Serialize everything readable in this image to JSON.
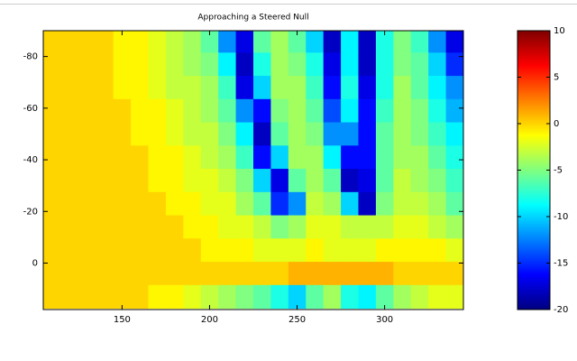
{
  "chart_data": {
    "type": "heatmap",
    "title": "Approaching a Steered Null",
    "x": [
      110,
      120,
      130,
      140,
      150,
      160,
      170,
      180,
      190,
      200,
      210,
      220,
      230,
      240,
      250,
      260,
      270,
      280,
      290,
      300,
      310,
      320,
      330,
      340
    ],
    "y": [
      -86,
      -77,
      -68,
      -59,
      -50,
      -41,
      -32,
      -23,
      -14,
      -5,
      4,
      13
    ],
    "z": [
      [
        0,
        0,
        0,
        0,
        -1,
        -1,
        -2,
        -3,
        -4,
        -6,
        -12,
        -17,
        -6,
        -4,
        -6,
        -10,
        -18,
        -9,
        -18,
        -8,
        -5,
        -7,
        -12,
        -17
      ],
      [
        0,
        0,
        0,
        0,
        -1,
        -1,
        -2,
        -3,
        -4,
        -5,
        -9,
        -18,
        -8,
        -4,
        -5,
        -8,
        -17,
        -9,
        -18,
        -8,
        -5,
        -6,
        -10,
        -15
      ],
      [
        0,
        0,
        0,
        0,
        -1,
        -1,
        -2,
        -3,
        -3,
        -4,
        -7,
        -17,
        -10,
        -4,
        -4,
        -7,
        -16,
        -8,
        -17,
        -8,
        -4,
        -6,
        -9,
        -12
      ],
      [
        0,
        0,
        0,
        0,
        0,
        -1,
        -1,
        -2,
        -3,
        -4,
        -6,
        -12,
        -16,
        -5,
        -4,
        -6,
        -14,
        -9,
        -16,
        -7,
        -4,
        -5,
        -8,
        -11
      ],
      [
        0,
        0,
        0,
        0,
        0,
        -1,
        -1,
        -2,
        -3,
        -3,
        -5,
        -9,
        -18,
        -6,
        -4,
        -5,
        -12,
        -12,
        -16,
        -6,
        -4,
        -5,
        -7,
        -9
      ],
      [
        0,
        0,
        0,
        0,
        0,
        0,
        -1,
        -1,
        -2,
        -3,
        -4,
        -7,
        -16,
        -10,
        -4,
        -4,
        -9,
        -16,
        -16,
        -6,
        -4,
        -4,
        -6,
        -8
      ],
      [
        0,
        0,
        0,
        0,
        0,
        0,
        -1,
        -1,
        -2,
        -2,
        -3,
        -5,
        -10,
        -17,
        -6,
        -4,
        -6,
        -18,
        -17,
        -6,
        -3,
        -4,
        -5,
        -7
      ],
      [
        0,
        0,
        0,
        0,
        0,
        0,
        0,
        -1,
        -1,
        -2,
        -2,
        -4,
        -6,
        -15,
        -12,
        -3,
        -4,
        -10,
        -18,
        -5,
        -3,
        -3,
        -4,
        -6
      ],
      [
        0,
        0,
        0,
        0,
        0,
        0,
        0,
        0,
        -1,
        -1,
        -2,
        -2,
        -3,
        -5,
        -4,
        -2,
        -2,
        -3,
        -3,
        -3,
        -2,
        -2,
        -3,
        -4
      ],
      [
        0,
        0,
        0,
        0,
        0,
        0,
        0,
        0,
        0,
        -1,
        -1,
        -1,
        -2,
        -2,
        -2,
        -1,
        -2,
        -2,
        -2,
        -1,
        -1,
        -1,
        -1,
        -2
      ],
      [
        0,
        0,
        0,
        0,
        0,
        0,
        0,
        0,
        0,
        0,
        0,
        0,
        0,
        0,
        1,
        1,
        1,
        1,
        1,
        1,
        0,
        0,
        0,
        0
      ],
      [
        0,
        0,
        0,
        0,
        0,
        0,
        -1,
        -1,
        -2,
        -3,
        -4,
        -5,
        -6,
        -8,
        -10,
        -6,
        -4,
        -8,
        -9,
        -6,
        -4,
        -3,
        -2,
        -2
      ]
    ],
    "xlim": [
      105,
      345
    ],
    "xticks": [
      150,
      200,
      250,
      300
    ],
    "ylim": [
      -90,
      18
    ],
    "yticks": [
      -80,
      -60,
      -40,
      -20,
      0
    ],
    "y_reversed": true,
    "colormap": "jet",
    "clim": [
      -20,
      10
    ],
    "cticks": [
      10,
      5,
      0,
      -5,
      -10,
      -15,
      -20
    ]
  }
}
